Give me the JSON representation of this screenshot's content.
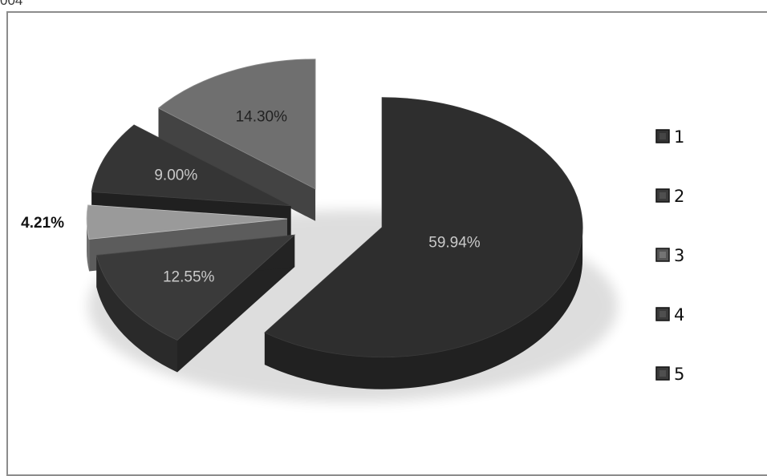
{
  "page": {
    "label": "004"
  },
  "chart_data": {
    "type": "pie",
    "style": "3d exploded",
    "categories": [
      "1",
      "2",
      "3",
      "4",
      "5"
    ],
    "values": [
      59.94,
      12.55,
      4.21,
      9.0,
      14.3
    ],
    "data_labels": [
      "59.94%",
      "12.55%",
      "4.21%",
      "9.00%",
      "14.30%"
    ],
    "colors": [
      "#2e2e2e",
      "#3a3a3a",
      "#9a9a9a",
      "#353535",
      "#6f6f6f"
    ],
    "legend": {
      "position": "right",
      "entries": [
        "1",
        "2",
        "3",
        "4",
        "5"
      ],
      "marker_colors": [
        "#333333",
        "#3b3b3b",
        "#555555",
        "#3b3b3b",
        "#3b3b3b"
      ]
    },
    "title": "",
    "grid": false
  }
}
